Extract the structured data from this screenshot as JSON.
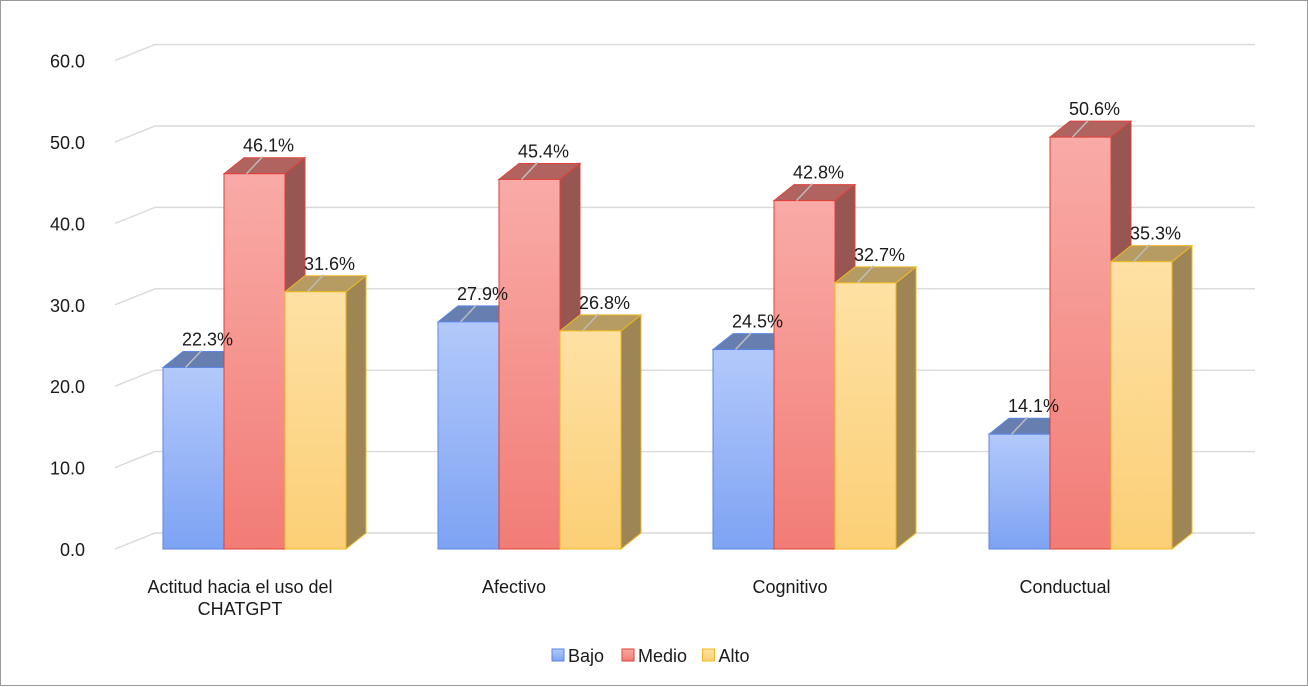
{
  "chart_data": {
    "type": "bar",
    "categories": [
      [
        "Actitud hacia el uso del",
        "CHATGPT"
      ],
      [
        "Afectivo"
      ],
      [
        "Cognitivo"
      ],
      [
        "Conductual"
      ]
    ],
    "series": [
      {
        "name": "Bajo",
        "values": [
          22.3,
          27.9,
          24.5,
          14.1
        ],
        "labels": [
          "22.3%",
          "27.9%",
          "24.5%",
          "14.1%"
        ],
        "color": "#8fb0f5"
      },
      {
        "name": "Medio",
        "values": [
          46.1,
          45.4,
          42.8,
          50.6
        ],
        "labels": [
          "46.1%",
          "45.4%",
          "42.8%",
          "50.6%"
        ],
        "color": "#f48a84"
      },
      {
        "name": "Alto",
        "values": [
          31.6,
          26.8,
          32.7,
          35.3
        ],
        "labels": [
          "31.6%",
          "26.8%",
          "32.7%",
          "35.3%"
        ],
        "color": "#fdd78a"
      }
    ],
    "y_ticks": [
      "0.0",
      "10.0",
      "20.0",
      "30.0",
      "40.0",
      "50.0",
      "60.0"
    ],
    "ylim": [
      0,
      60
    ],
    "grid": true,
    "legend_position": "bottom",
    "style": "3d-clustered-column"
  }
}
